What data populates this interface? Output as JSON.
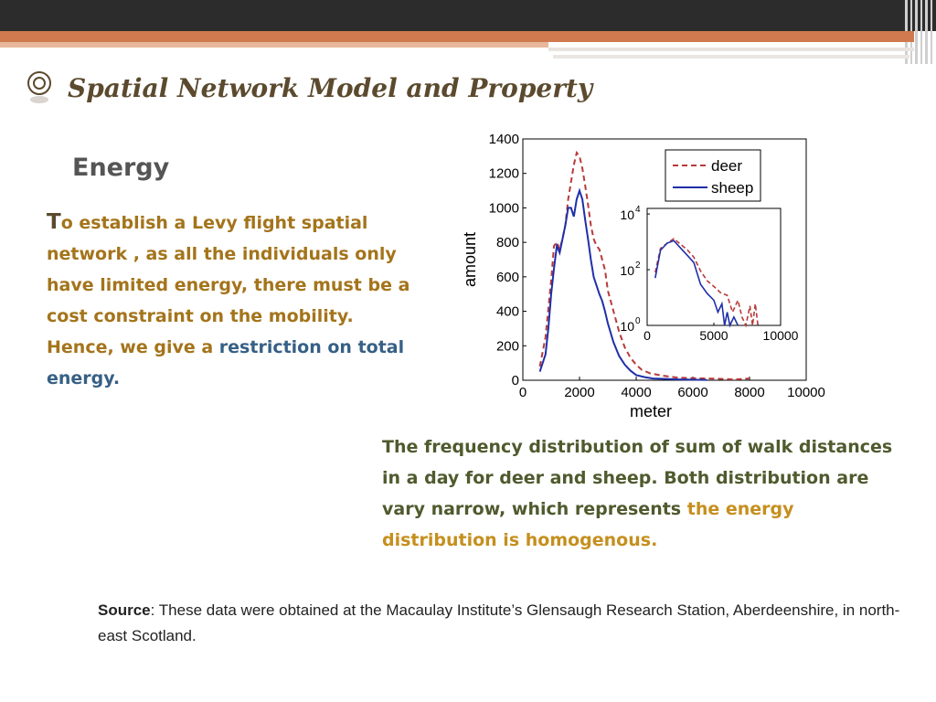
{
  "slide": {
    "title": "Spatial Network Model and Property",
    "subtitle": "Energy",
    "paragraph": {
      "dropcap": "T",
      "text": "o establish a Levy flight spatial network , as all the individuals only have limited energy, there must be a cost constraint on the mobility. Hence, we give a ",
      "highlight": "restriction on total energy."
    },
    "caption": {
      "text": "The frequency distribution of sum of walk distances in a day for deer and sheep. Both distribution are vary narrow, which represents ",
      "highlight": "the energy distribution is homogenous."
    },
    "source": {
      "label": "Source",
      "text": ": These data were obtained at the Macaulay Institute’s Glensaugh Research Station, Aberdeenshire, in north-east Scotland."
    }
  },
  "colors": {
    "deer": "#b83a3a",
    "sheep": "#1f2fa8"
  },
  "chart_data": {
    "type": "line",
    "title": "",
    "xlabel": "meter",
    "ylabel": "amount",
    "xlim": [
      0,
      10000
    ],
    "ylim": [
      0,
      1400
    ],
    "xticks": [
      "0",
      "2000",
      "4000",
      "6000",
      "8000",
      "10000"
    ],
    "yticks": [
      "0",
      "200",
      "400",
      "600",
      "800",
      "1000",
      "1200",
      "1400"
    ],
    "legend": "top-right",
    "grid": false,
    "series": [
      {
        "name": "deer",
        "style": "dashed",
        "x": [
          600,
          800,
          1000,
          1100,
          1200,
          1300,
          1400,
          1500,
          1600,
          1700,
          1800,
          1900,
          2000,
          2100,
          2200,
          2300,
          2400,
          2500,
          2600,
          2700,
          2800,
          2900,
          3000,
          3200,
          3400,
          3600,
          3800,
          4000,
          4200,
          4500,
          5000,
          5500,
          6000,
          6500,
          7000,
          7500,
          8000
        ],
        "y": [
          80,
          250,
          580,
          780,
          800,
          760,
          820,
          900,
          1050,
          1150,
          1250,
          1320,
          1300,
          1230,
          1130,
          1020,
          900,
          820,
          780,
          760,
          700,
          640,
          520,
          400,
          280,
          190,
          130,
          90,
          60,
          40,
          25,
          15,
          12,
          10,
          8,
          5,
          10
        ]
      },
      {
        "name": "sheep",
        "style": "solid",
        "x": [
          600,
          800,
          900,
          1000,
          1100,
          1200,
          1300,
          1400,
          1500,
          1600,
          1700,
          1800,
          1900,
          2000,
          2100,
          2200,
          2300,
          2400,
          2500,
          2600,
          2700,
          2800,
          2900,
          3000,
          3200,
          3400,
          3600,
          3800,
          4000,
          4300,
          4600,
          5000,
          5500,
          6000,
          6500
        ],
        "y": [
          50,
          150,
          300,
          500,
          650,
          780,
          740,
          820,
          900,
          1000,
          1000,
          950,
          1050,
          1100,
          1050,
          930,
          820,
          700,
          600,
          550,
          500,
          460,
          400,
          330,
          220,
          140,
          90,
          55,
          30,
          18,
          10,
          8,
          5,
          3,
          2
        ]
      }
    ],
    "inset": {
      "type": "line",
      "yscale": "log",
      "xlim": [
        0,
        10000
      ],
      "xticks": [
        "0",
        "5000",
        "10000"
      ],
      "yticks_exp": [
        "0",
        "2",
        "4"
      ],
      "ytick_base": "10",
      "series": [
        {
          "name": "deer",
          "style": "dashed",
          "x": [
            600,
            1000,
            1500,
            2000,
            2500,
            3000,
            3500,
            4000,
            4500,
            5000,
            5500,
            6000,
            6400,
            6800,
            7100,
            7400,
            7700,
            7900,
            8100,
            8300
          ],
          "y": [
            80,
            580,
            900,
            1300,
            820,
            520,
            280,
            90,
            40,
            25,
            15,
            12,
            3,
            8,
            2,
            1,
            5,
            1,
            6,
            1
          ]
        },
        {
          "name": "sheep",
          "style": "solid",
          "x": [
            600,
            1000,
            1500,
            2000,
            2500,
            3000,
            3500,
            4000,
            4500,
            5000,
            5300,
            5600,
            5800,
            6000,
            6200,
            6500,
            6800
          ],
          "y": [
            50,
            500,
            900,
            1100,
            600,
            330,
            180,
            30,
            14,
            8,
            3,
            6,
            1,
            3,
            1,
            2,
            1
          ]
        }
      ]
    }
  }
}
